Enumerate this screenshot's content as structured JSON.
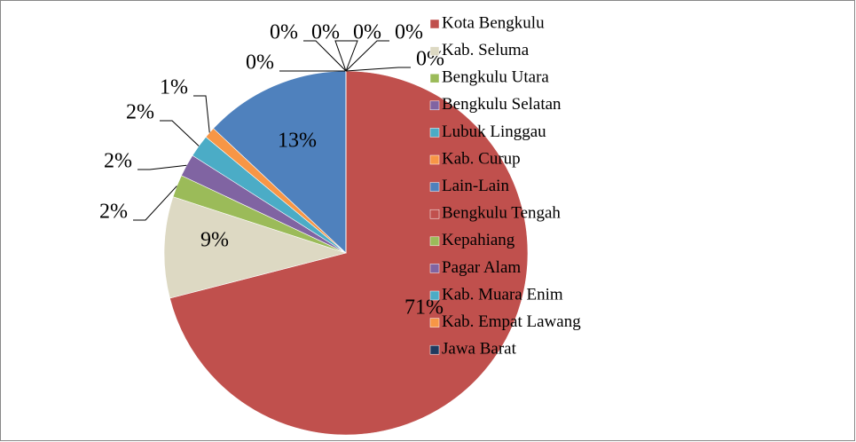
{
  "chart_data": {
    "type": "pie",
    "categories": [
      "Kota Bengkulu",
      "Kab. Seluma",
      "Bengkulu Utara",
      "Bengkulu Selatan",
      "Lubuk Linggau",
      "Kab. Curup",
      "Lain-Lain",
      "Bengkulu Tengah",
      "Kepahiang",
      "Pagar Alam",
      "Kab. Muara Enim",
      "Kab. Empat Lawang",
      "Jawa Barat"
    ],
    "values": [
      71,
      9,
      2,
      2,
      2,
      1,
      13,
      0,
      0,
      0,
      0,
      0,
      0
    ],
    "value_labels": [
      "71%",
      "9%",
      "2%",
      "2%",
      "2%",
      "1%",
      "13%",
      "0%",
      "0%",
      "0%",
      "0%",
      "0%",
      "0%"
    ],
    "colors": [
      "#c0504d",
      "#ddd9c3",
      "#9bbb59",
      "#8064a2",
      "#4bacc6",
      "#f79646",
      "#4f81bd",
      "#c0504d",
      "#9bbb59",
      "#8064a2",
      "#4bacc6",
      "#f79646",
      "#1f3a5f"
    ],
    "legend": "right"
  }
}
